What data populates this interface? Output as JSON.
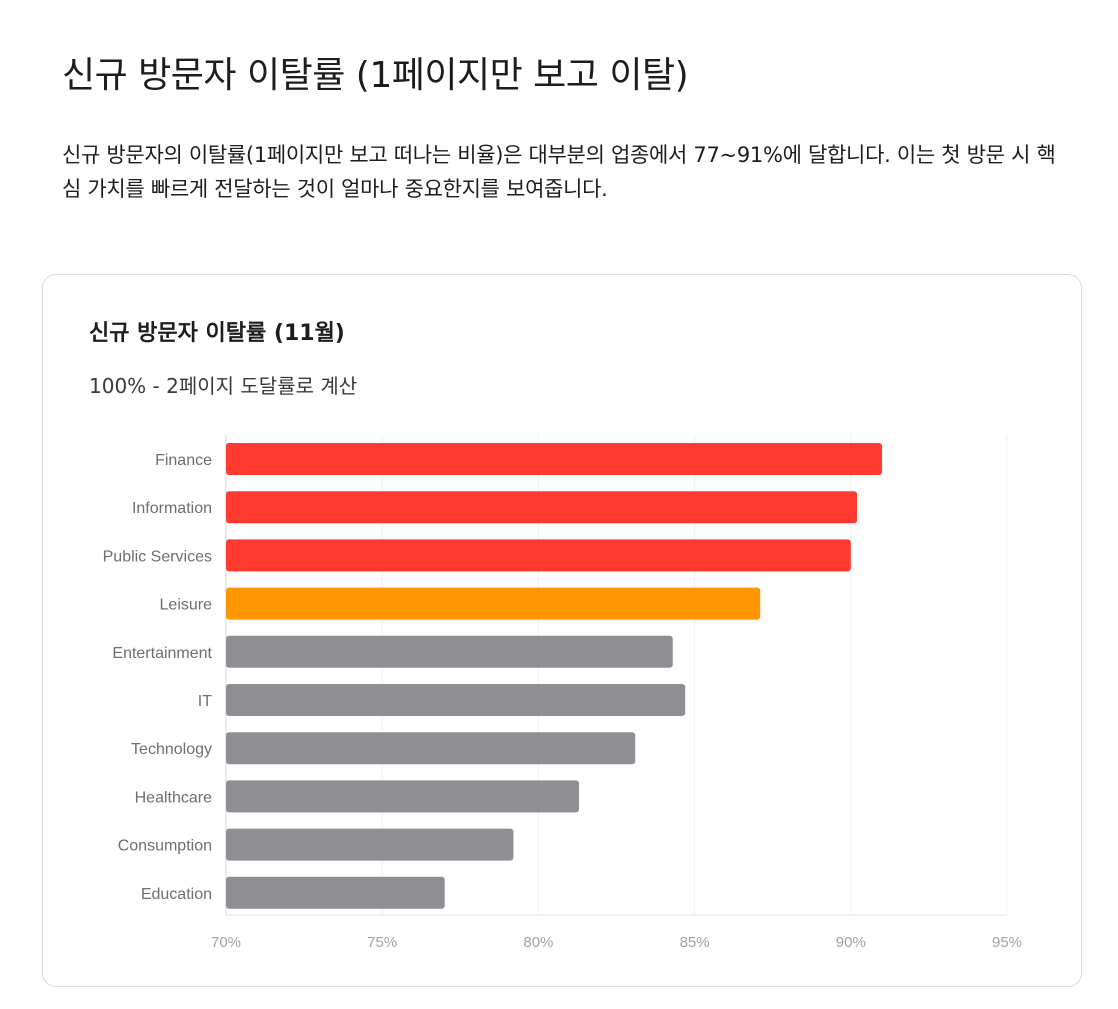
{
  "page": {
    "title": "신규 방문자 이탈률 (1페이지만 보고 이탈)",
    "description": "신규 방문자의 이탈률(1페이지만 보고 떠나는 비율)은 대부분의 업종에서 77~91%에 달합니다. 이는 첫 방문 시 핵심 가치를 빠르게 전달하는 것이 얼마나 중요한지를 보여줍니다."
  },
  "chart_data": {
    "type": "bar",
    "orientation": "horizontal",
    "title": "신규 방문자 이탈률 (11월)",
    "subtitle": "100% - 2페이지 도달률로 계산",
    "categories": [
      "Finance",
      "Information",
      "Public Services",
      "Leisure",
      "Entertainment",
      "IT",
      "Technology",
      "Healthcare",
      "Consumption",
      "Education"
    ],
    "values": [
      91.0,
      90.2,
      90.0,
      87.1,
      84.3,
      84.7,
      83.1,
      81.3,
      79.2,
      77.0
    ],
    "colors": [
      "#ff3b30",
      "#ff3b30",
      "#ff3b30",
      "#ff9500",
      "#8e8e93",
      "#8e8e93",
      "#8e8e93",
      "#8e8e93",
      "#8e8e93",
      "#8e8e93"
    ],
    "xlim": [
      70,
      95
    ],
    "xticks": [
      "70%",
      "75%",
      "80%",
      "85%",
      "90%",
      "95%"
    ],
    "xtick_values": [
      70,
      75,
      80,
      85,
      90,
      95
    ],
    "xlabel": "",
    "ylabel": "",
    "grid": true,
    "legend": "none"
  }
}
